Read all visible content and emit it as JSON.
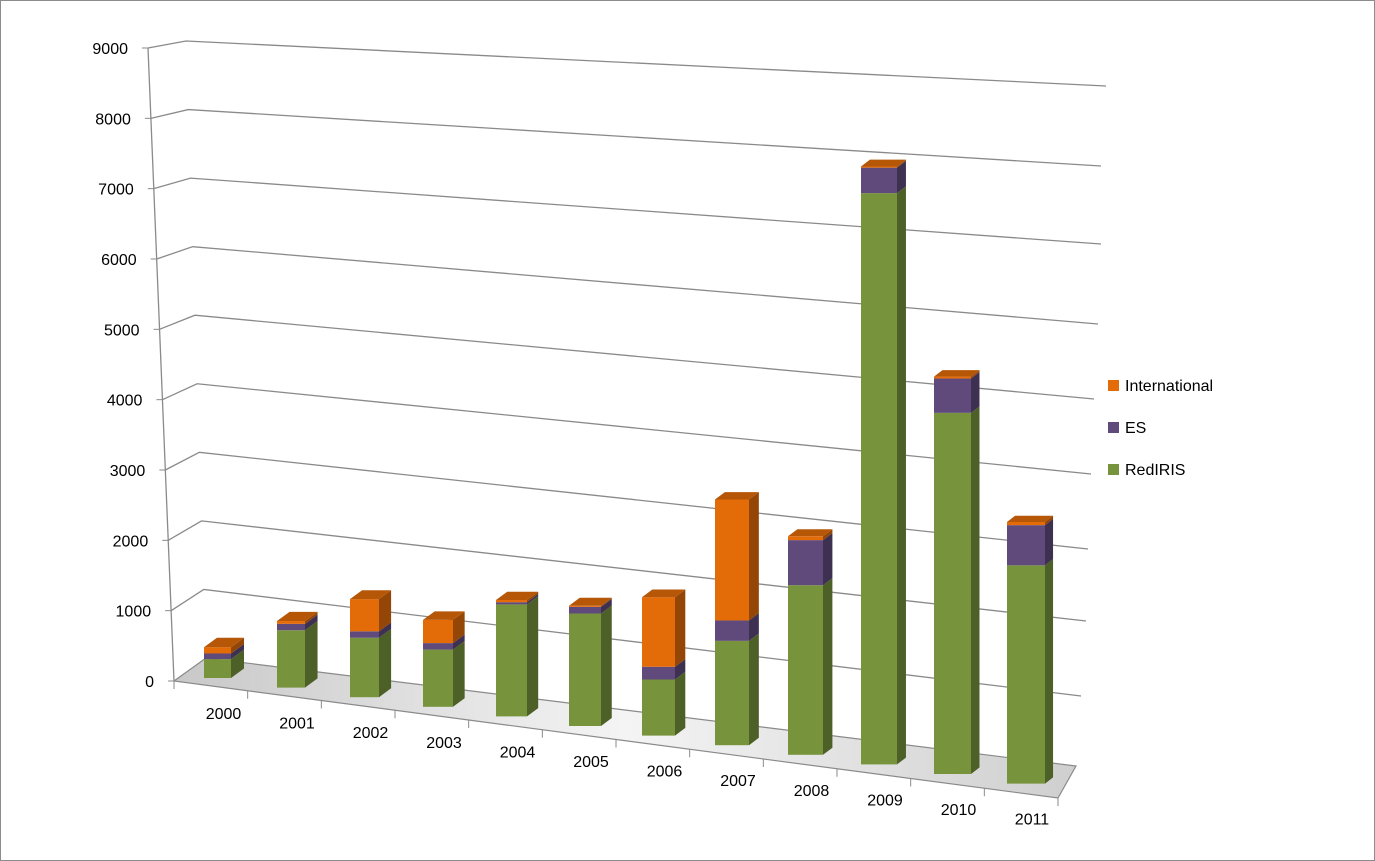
{
  "chart_data": {
    "type": "bar",
    "stacked": true,
    "three_d": true,
    "categories": [
      "2000",
      "2001",
      "2002",
      "2003",
      "2004",
      "2005",
      "2006",
      "2007",
      "2008",
      "2009",
      "2010",
      "2011"
    ],
    "series": [
      {
        "name": "RedIRIS",
        "color": "#77933C",
        "values": [
          270,
          810,
          830,
          790,
          1530,
          1520,
          750,
          1380,
          2220,
          7400,
          4630,
          2770
        ]
      },
      {
        "name": "ES",
        "color": "#604A7B",
        "values": [
          80,
          90,
          90,
          90,
          30,
          90,
          170,
          270,
          590,
          330,
          440,
          510
        ]
      },
      {
        "name": "International",
        "color": "#E36C09",
        "values": [
          90,
          40,
          450,
          320,
          30,
          15,
          930,
          1600,
          50,
          15,
          25,
          40
        ]
      }
    ],
    "yticks": [
      "0",
      "1000",
      "2000",
      "3000",
      "4000",
      "5000",
      "6000",
      "7000",
      "8000",
      "9000"
    ],
    "ylim": [
      0,
      9000
    ],
    "grid": true,
    "legend_position": "right",
    "legend_order": [
      "International",
      "ES",
      "RedIRIS"
    ]
  }
}
